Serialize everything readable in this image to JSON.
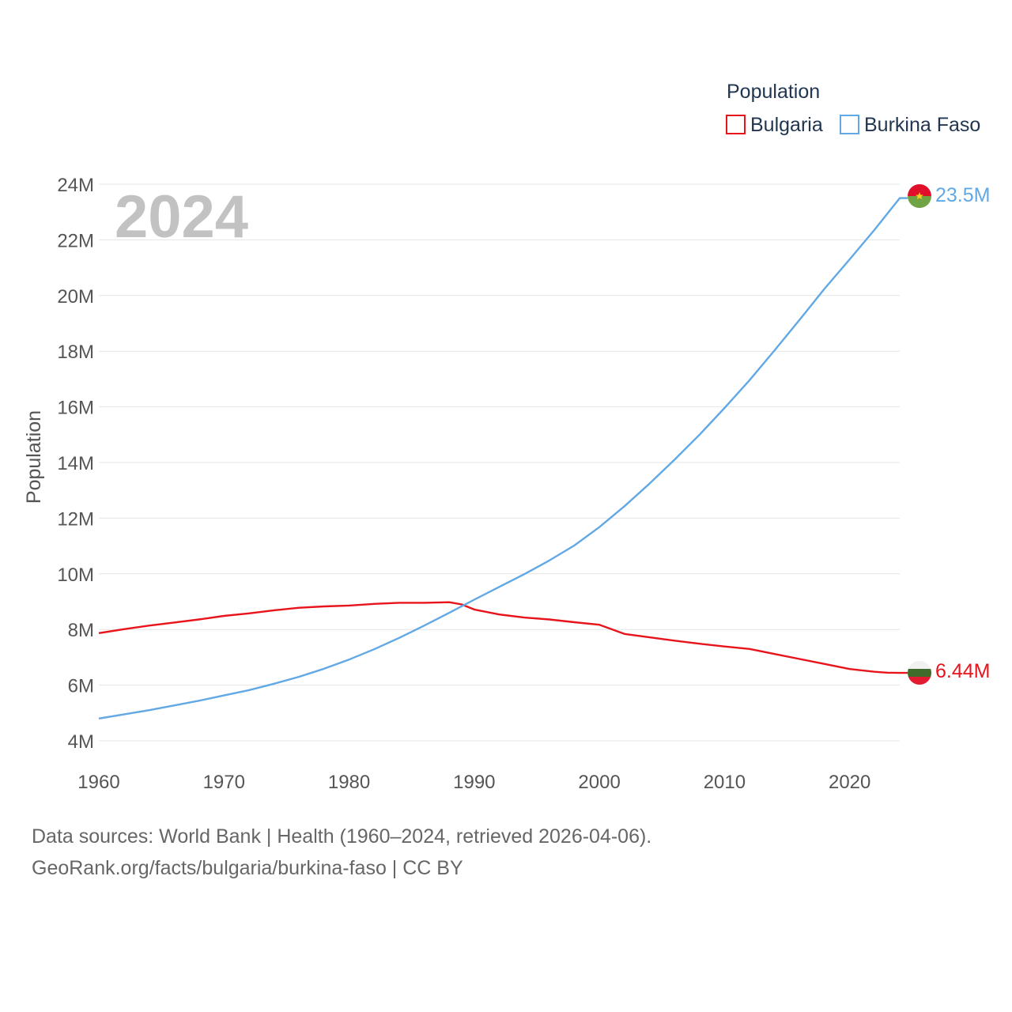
{
  "chart_data": {
    "type": "line",
    "title": "Population",
    "xlabel": "",
    "ylabel": "Population",
    "current_year_label": "2024",
    "xlim": [
      1960,
      2024
    ],
    "ylim": [
      4000000,
      24000000
    ],
    "x_ticks": [
      1960,
      1970,
      1980,
      1990,
      2000,
      2010,
      2020
    ],
    "x_tick_labels": [
      "1960",
      "1970",
      "1980",
      "1990",
      "2000",
      "2010",
      "2020"
    ],
    "y_ticks": [
      4000000,
      6000000,
      8000000,
      10000000,
      12000000,
      14000000,
      16000000,
      18000000,
      20000000,
      22000000,
      24000000
    ],
    "y_tick_labels": [
      "4M",
      "6M",
      "8M",
      "10M",
      "12M",
      "14M",
      "16M",
      "18M",
      "20M",
      "22M",
      "24M"
    ],
    "grid": true,
    "legend_position": "top-right",
    "series": [
      {
        "name": "Bulgaria",
        "color": "#e8141c",
        "end_label": "6.44M",
        "points": [
          [
            1960,
            7870000
          ],
          [
            1962,
            8010000
          ],
          [
            1964,
            8140000
          ],
          [
            1966,
            8250000
          ],
          [
            1968,
            8360000
          ],
          [
            1970,
            8490000
          ],
          [
            1972,
            8580000
          ],
          [
            1974,
            8690000
          ],
          [
            1976,
            8780000
          ],
          [
            1978,
            8830000
          ],
          [
            1980,
            8860000
          ],
          [
            1982,
            8920000
          ],
          [
            1984,
            8960000
          ],
          [
            1986,
            8960000
          ],
          [
            1988,
            8980000
          ],
          [
            1989,
            8900000
          ],
          [
            1990,
            8720000
          ],
          [
            1992,
            8540000
          ],
          [
            1994,
            8430000
          ],
          [
            1996,
            8360000
          ],
          [
            1998,
            8260000
          ],
          [
            2000,
            8170000
          ],
          [
            2002,
            7840000
          ],
          [
            2004,
            7720000
          ],
          [
            2006,
            7600000
          ],
          [
            2008,
            7490000
          ],
          [
            2010,
            7390000
          ],
          [
            2012,
            7300000
          ],
          [
            2014,
            7120000
          ],
          [
            2016,
            6940000
          ],
          [
            2018,
            6760000
          ],
          [
            2020,
            6580000
          ],
          [
            2022,
            6480000
          ],
          [
            2023,
            6450000
          ],
          [
            2024,
            6440000
          ]
        ]
      },
      {
        "name": "Burkina Faso",
        "color": "#62a8e5",
        "end_label": "23.5M",
        "points": [
          [
            1960,
            4800000
          ],
          [
            1962,
            4950000
          ],
          [
            1964,
            5100000
          ],
          [
            1966,
            5270000
          ],
          [
            1968,
            5440000
          ],
          [
            1970,
            5630000
          ],
          [
            1972,
            5820000
          ],
          [
            1974,
            6050000
          ],
          [
            1976,
            6300000
          ],
          [
            1978,
            6590000
          ],
          [
            1980,
            6920000
          ],
          [
            1982,
            7290000
          ],
          [
            1984,
            7700000
          ],
          [
            1986,
            8140000
          ],
          [
            1988,
            8600000
          ],
          [
            1990,
            9070000
          ],
          [
            1992,
            9530000
          ],
          [
            1994,
            9990000
          ],
          [
            1996,
            10480000
          ],
          [
            1998,
            11020000
          ],
          [
            2000,
            11680000
          ],
          [
            2002,
            12430000
          ],
          [
            2004,
            13240000
          ],
          [
            2006,
            14100000
          ],
          [
            2008,
            15000000
          ],
          [
            2010,
            15960000
          ],
          [
            2012,
            16960000
          ],
          [
            2014,
            18030000
          ],
          [
            2016,
            19130000
          ],
          [
            2018,
            20250000
          ],
          [
            2020,
            21300000
          ],
          [
            2022,
            22370000
          ],
          [
            2024,
            23500000
          ]
        ]
      }
    ]
  },
  "sources": {
    "line1": "Data sources: World Bank | Health (1960–2024, retrieved 2026-04-06).",
    "line2": "GeoRank.org/facts/bulgaria/burkina-faso | CC BY"
  }
}
